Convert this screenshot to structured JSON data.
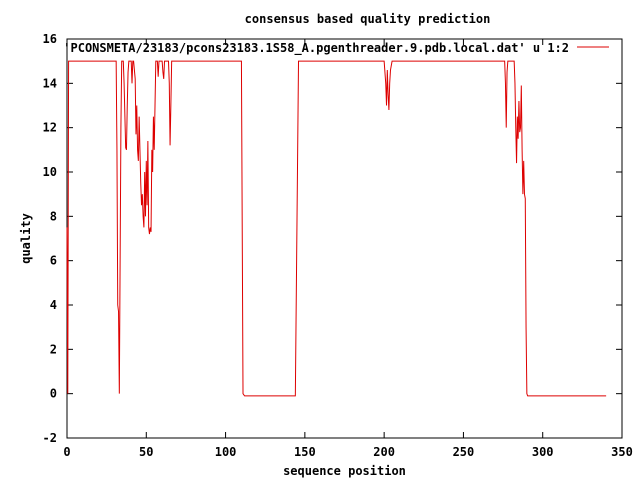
{
  "chart_data": {
    "type": "line",
    "title": "consensus based quality prediction",
    "xlabel": "sequence position",
    "ylabel": "quality",
    "xlim": [
      0,
      350
    ],
    "ylim": [
      -2,
      16
    ],
    "x_ticks": [
      "0",
      "50",
      "100",
      "150",
      "200",
      "250",
      "300",
      "350"
    ],
    "y_ticks": [
      "-2",
      "0",
      "2",
      "4",
      "6",
      "8",
      "10",
      "12",
      "14",
      "16"
    ],
    "legend_position": "top-right",
    "series": [
      {
        "name": "'PCONSMETA/23183/pcons23183.1S58_A.pgenthreader.9.pdb.local.dat' u 1:2",
        "color": "#dd0000",
        "points": [
          [
            0,
            7.5
          ],
          [
            0.5,
            0
          ],
          [
            1,
            15
          ],
          [
            31,
            15
          ],
          [
            31.5,
            11
          ],
          [
            32,
            4
          ],
          [
            32.5,
            3.7
          ],
          [
            33,
            0
          ],
          [
            33.5,
            6
          ],
          [
            34,
            12
          ],
          [
            34.5,
            15
          ],
          [
            35.5,
            15
          ],
          [
            36,
            14
          ],
          [
            37,
            11.1
          ],
          [
            37.5,
            11
          ],
          [
            38,
            13
          ],
          [
            38.5,
            14.5
          ],
          [
            39,
            15
          ],
          [
            40.5,
            15
          ],
          [
            41,
            14
          ],
          [
            41.5,
            15
          ],
          [
            42,
            15
          ],
          [
            43,
            14.2
          ],
          [
            43.5,
            11.7
          ],
          [
            44,
            13
          ],
          [
            44.5,
            11
          ],
          [
            45,
            10.5
          ],
          [
            45.5,
            12.5
          ],
          [
            46,
            11
          ],
          [
            46.5,
            9.5
          ],
          [
            47,
            8.5
          ],
          [
            47.5,
            9
          ],
          [
            48,
            8
          ],
          [
            48.5,
            7.5
          ],
          [
            49,
            10
          ],
          [
            49.5,
            8
          ],
          [
            50,
            10.5
          ],
          [
            50.5,
            8.5
          ],
          [
            51,
            11.4
          ],
          [
            51.5,
            7.5
          ],
          [
            52,
            7.2
          ],
          [
            52.5,
            7.5
          ],
          [
            53,
            7.3
          ],
          [
            53.5,
            11
          ],
          [
            54,
            10
          ],
          [
            54.5,
            12.5
          ],
          [
            55,
            11
          ],
          [
            55.5,
            13
          ],
          [
            56,
            15
          ],
          [
            57,
            15
          ],
          [
            57.5,
            14.3
          ],
          [
            58,
            15
          ],
          [
            60,
            15
          ],
          [
            60.5,
            14.5
          ],
          [
            61,
            14.2
          ],
          [
            61.5,
            15
          ],
          [
            64,
            15
          ],
          [
            64.5,
            14
          ],
          [
            65,
            11.2
          ],
          [
            65.5,
            13
          ],
          [
            66,
            15
          ],
          [
            110,
            15
          ],
          [
            111,
            0
          ],
          [
            112,
            -0.1
          ],
          [
            144,
            -0.1
          ],
          [
            145,
            7.5
          ],
          [
            146,
            15
          ],
          [
            200,
            15
          ],
          [
            201,
            14
          ],
          [
            201.5,
            13
          ],
          [
            202,
            14.6
          ],
          [
            202.5,
            13.5
          ],
          [
            203,
            12.8
          ],
          [
            203.5,
            14
          ],
          [
            204,
            14.6
          ],
          [
            205,
            15
          ],
          [
            276,
            15
          ],
          [
            276.5,
            14
          ],
          [
            277,
            12
          ],
          [
            277.5,
            14.5
          ],
          [
            278,
            15
          ],
          [
            282,
            15
          ],
          [
            282.5,
            14
          ],
          [
            283,
            12
          ],
          [
            283.5,
            10.4
          ],
          [
            284,
            12.5
          ],
          [
            284.5,
            11.5
          ],
          [
            285,
            13.2
          ],
          [
            285.5,
            11.8
          ],
          [
            286,
            12
          ],
          [
            286.5,
            13.9
          ],
          [
            287,
            11
          ],
          [
            287.5,
            9
          ],
          [
            288,
            10.5
          ],
          [
            288.5,
            9
          ],
          [
            289,
            8.8
          ],
          [
            289.5,
            3
          ],
          [
            290,
            0
          ],
          [
            290.5,
            -0.1
          ],
          [
            340,
            -0.1
          ]
        ]
      }
    ]
  }
}
